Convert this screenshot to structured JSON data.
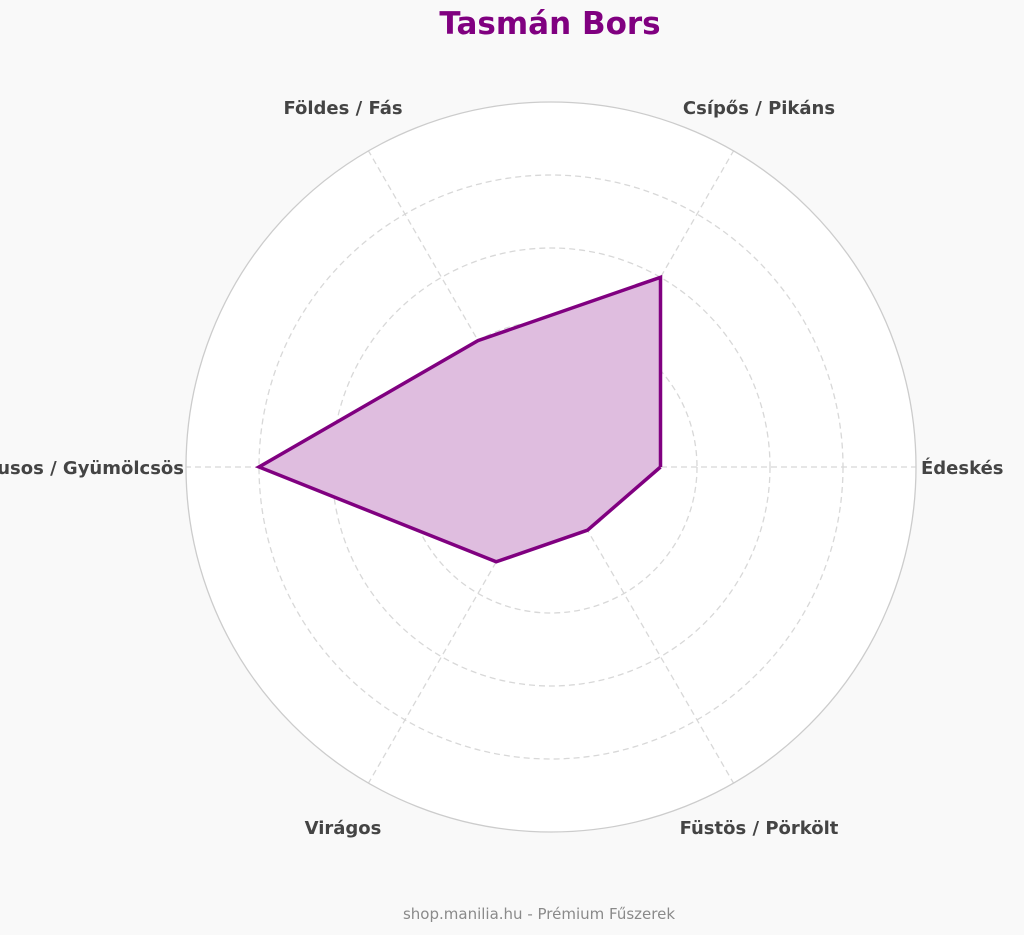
{
  "chart_data": {
    "type": "radar",
    "title": "Tasmán Bors",
    "categories": [
      "Édeskés",
      "Csípős / Pikáns",
      "Földes / Fás",
      "Citrusos / Gyümölcsös",
      "Virágos",
      "Füstös / Pörkölt"
    ],
    "series": [
      {
        "values": [
          3,
          6,
          4,
          8,
          3,
          2
        ]
      }
    ],
    "rlim": [
      0,
      10
    ],
    "grid_rings": [
      2,
      4,
      6,
      8
    ],
    "grid": true,
    "legend": "none"
  },
  "footer": "shop.manilia.hu - Prémium Fűszerek",
  "colors": {
    "accent": "#800080",
    "fill": "#dfbddf",
    "grid": "#d8d8d8",
    "outer_ring": "#cccccc",
    "label": "#444444",
    "background": "#f9f9f9"
  }
}
